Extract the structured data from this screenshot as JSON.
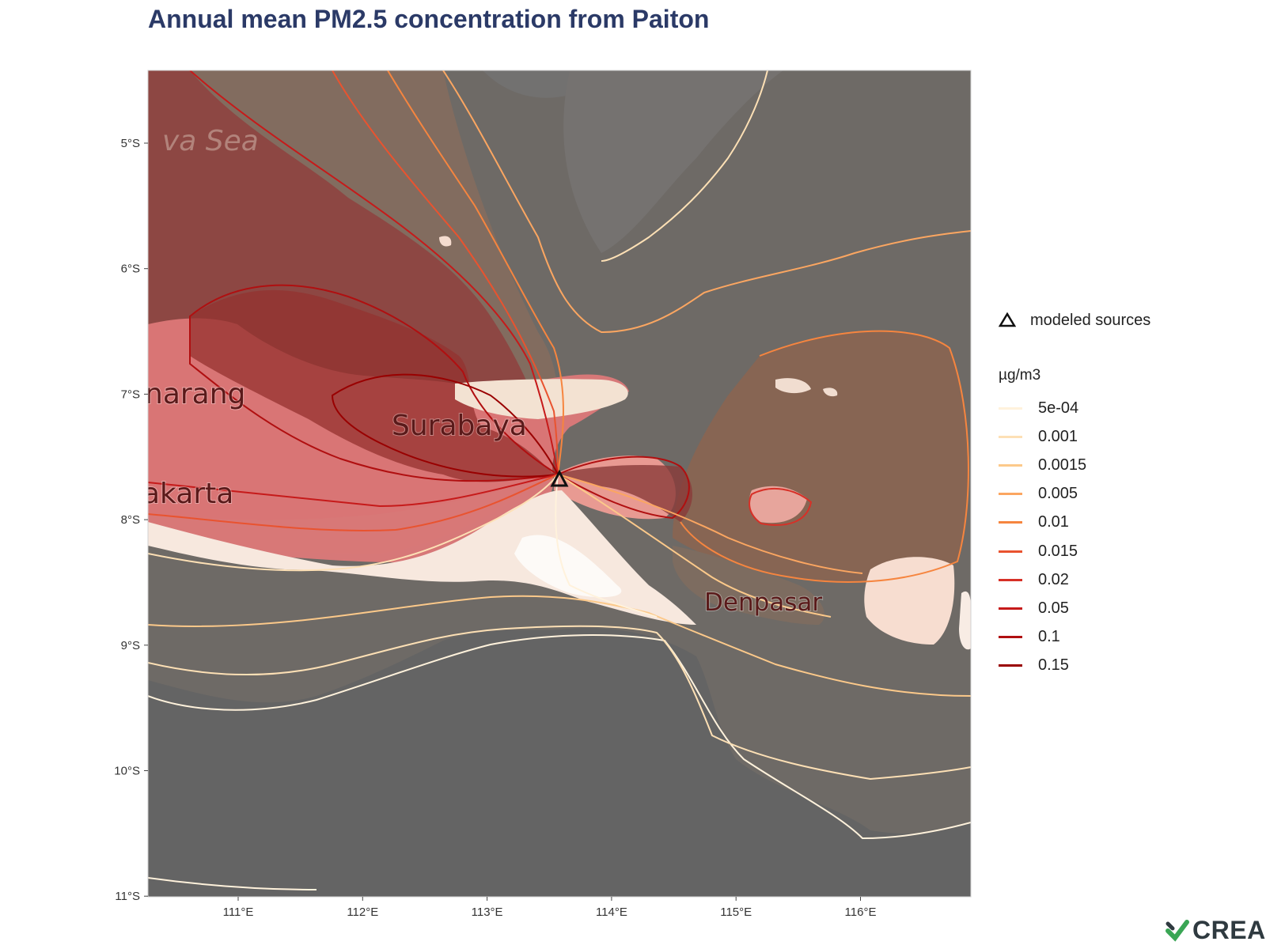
{
  "title": "Annual mean PM2.5 concentration from Paiton",
  "map": {
    "x_axis_ticks": [
      "111°E",
      "112°E",
      "113°E",
      "114°E",
      "115°E",
      "116°E"
    ],
    "y_axis_ticks": [
      "5°S",
      "6°S",
      "7°S",
      "8°S",
      "9°S",
      "10°S",
      "11°S"
    ],
    "place_labels": {
      "sea": "va Sea",
      "semarang": "narang",
      "surabaya": "Surabaya",
      "yogyakarta": "akarta",
      "denpasar": "Denpasar"
    }
  },
  "legend": {
    "source_label": "modeled sources",
    "unit_title": "µg/m3",
    "levels": [
      {
        "label": "5e-04",
        "color": "#fff2dc"
      },
      {
        "label": "0.001",
        "color": "#fde0b5"
      },
      {
        "label": "0.0015",
        "color": "#fcc98a"
      },
      {
        "label": "0.005",
        "color": "#fba661"
      },
      {
        "label": "0.01",
        "color": "#f6853f"
      },
      {
        "label": "0.015",
        "color": "#e9532f"
      },
      {
        "label": "0.02",
        "color": "#d73027"
      },
      {
        "label": "0.05",
        "color": "#c61a1a"
      },
      {
        "label": "0.1",
        "color": "#b00f10"
      },
      {
        "label": "0.15",
        "color": "#990000"
      }
    ]
  },
  "logo": {
    "text": "CREA"
  }
}
